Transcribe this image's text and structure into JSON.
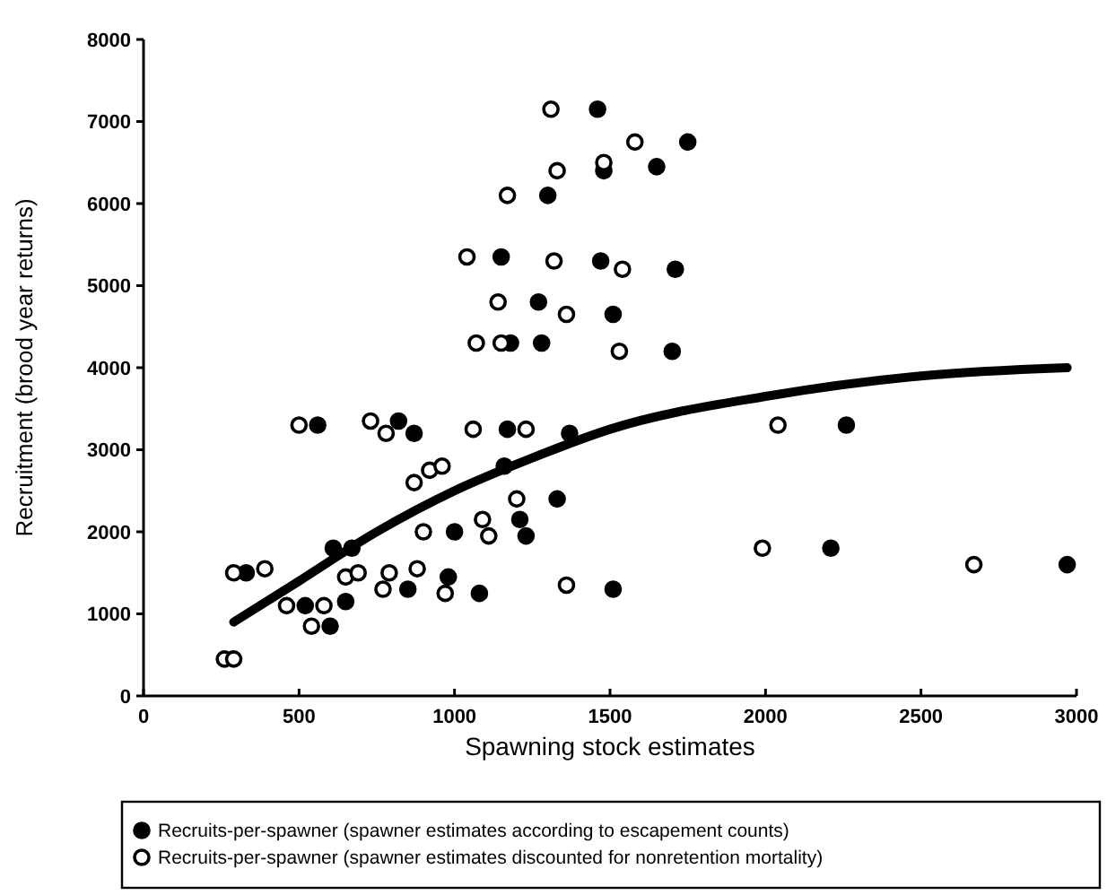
{
  "chart_data": {
    "type": "scatter",
    "xlabel": "Spawning stock estimates",
    "ylabel": "Recruitment (brood year returns)",
    "xlim": [
      0,
      3000
    ],
    "xticks": [
      0,
      500,
      1000,
      1500,
      2000,
      2500,
      3000
    ],
    "ylim": [
      0,
      8000
    ],
    "yticks": [
      0,
      1000,
      2000,
      3000,
      4000,
      5000,
      6000,
      7000,
      8000
    ],
    "grid": false,
    "legend": "bottom",
    "series": [
      {
        "name": "Recruits-per-spawner (spawner estimates according to escapement counts)",
        "color": "#000000",
        "marker": "circle",
        "x": [
          330,
          520,
          560,
          600,
          650,
          610,
          670,
          820,
          870,
          850,
          980,
          1000,
          1080,
          1160,
          1170,
          1370,
          1330,
          1210,
          1230,
          1510,
          2260,
          2210,
          2970,
          1460,
          1750,
          1650,
          1480,
          1300,
          1150,
          1470,
          1710,
          1270,
          1510,
          1180,
          1280,
          1700
        ],
        "values": [
          1500,
          1100,
          3300,
          850,
          1150,
          1800,
          1800,
          3350,
          3200,
          1300,
          1450,
          2000,
          1250,
          2800,
          3250,
          3200,
          2400,
          2150,
          1950,
          1300,
          3300,
          1800,
          1600,
          7150,
          6750,
          6450,
          6400,
          6100,
          5350,
          5300,
          5200,
          4800,
          4650,
          4300,
          4300,
          4200
        ]
      },
      {
        "name": "Recruits-per-spawner (spawner estimates discounted for nonretention mortality)",
        "color": "#ffffff",
        "marker": "circle",
        "x": [
          260,
          290,
          290,
          390,
          460,
          500,
          540,
          580,
          650,
          690,
          730,
          770,
          780,
          790,
          880,
          900,
          970,
          1060,
          1090,
          1110,
          870,
          920,
          960,
          1200,
          1360,
          1230,
          2040,
          1990,
          2670,
          1310,
          1580,
          1330,
          1480,
          1170,
          1040,
          1320,
          1540,
          1140,
          1360,
          1070,
          1150,
          1530
        ],
        "values": [
          450,
          450,
          1500,
          1550,
          1100,
          3300,
          850,
          1100,
          1450,
          1500,
          3350,
          1300,
          3200,
          1500,
          1550,
          2000,
          1250,
          3250,
          2150,
          1950,
          2600,
          2750,
          2800,
          2400,
          1350,
          3250,
          3300,
          1800,
          1600,
          7150,
          6750,
          6400,
          6500,
          6100,
          5350,
          5300,
          5200,
          4800,
          4650,
          4300,
          4300,
          4200
        ]
      },
      {
        "type": "line",
        "color": "#000000",
        "marker": "none",
        "x": [
          290,
          500,
          750,
          1000,
          1250,
          1500,
          2000,
          2500,
          2970
        ],
        "values": [
          900,
          1400,
          2000,
          2500,
          2900,
          3250,
          3650,
          3900,
          4000
        ]
      }
    ]
  }
}
